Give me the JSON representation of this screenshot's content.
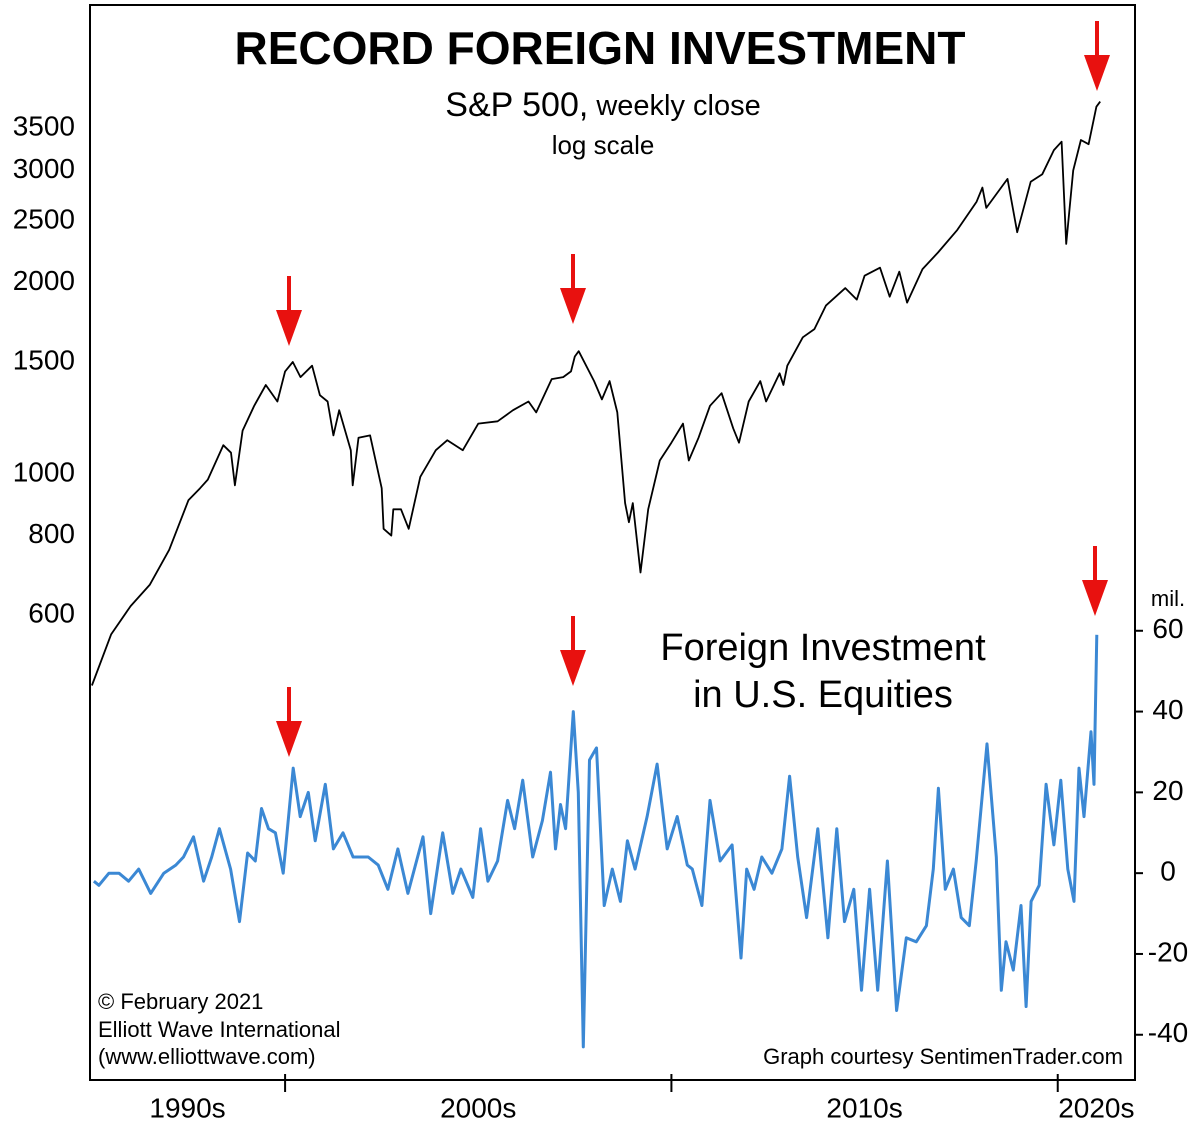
{
  "chart_data": {
    "type": "line",
    "title": "RECORD FOREIGN INVESTMENT",
    "log_y": true,
    "xlim": [
      1994.95,
      2022.0
    ],
    "xticks": [
      2000,
      2010,
      2020
    ],
    "x_labels": [
      "1990s",
      "2000s",
      "2010s",
      "2020s"
    ],
    "ylim": [
      111.5,
      5462
    ],
    "yticks": [
      600,
      800,
      1000,
      1500,
      2000,
      2500,
      3000,
      3500
    ],
    "y2lim": [
      -51.2,
      214.9
    ],
    "y2ticks": [
      -40,
      -20,
      0,
      20,
      40,
      60
    ],
    "y2_unit": "mil.",
    "credits": [
      "© February 2021",
      "Elliott Wave International",
      "(www.elliottwave.com)"
    ],
    "source": "Graph courtesy SentimenTrader.com",
    "series": [
      {
        "name": "S&P 500,",
        "subname": "weekly close",
        "note": "log scale",
        "color": "#000000",
        "x": [
          1995.0,
          1995.5,
          1996.0,
          1996.5,
          1997.0,
          1997.5,
          1997.8,
          1998.0,
          1998.4,
          1998.6,
          1998.7,
          1998.9,
          1999.2,
          1999.5,
          1999.8,
          2000.0,
          2000.2,
          2000.4,
          2000.7,
          2000.9,
          2001.1,
          2001.25,
          2001.4,
          2001.7,
          2001.75,
          2001.9,
          2002.2,
          2002.5,
          2002.55,
          2002.75,
          2002.8,
          2003.0,
          2003.2,
          2003.5,
          2003.9,
          2004.2,
          2004.6,
          2005.0,
          2005.5,
          2005.9,
          2006.3,
          2006.5,
          2006.9,
          2007.2,
          2007.4,
          2007.5,
          2007.6,
          2008.0,
          2008.2,
          2008.4,
          2008.6,
          2008.8,
          2008.9,
          2009.0,
          2009.2,
          2009.4,
          2009.7,
          2010.0,
          2010.3,
          2010.45,
          2010.7,
          2011.0,
          2011.3,
          2011.6,
          2011.75,
          2012.0,
          2012.3,
          2012.45,
          2012.8,
          2012.9,
          2013.0,
          2013.4,
          2013.7,
          2014.0,
          2014.5,
          2014.8,
          2015.0,
          2015.4,
          2015.65,
          2015.9,
          2016.1,
          2016.5,
          2016.9,
          2017.4,
          2017.9,
          2018.05,
          2018.15,
          2018.7,
          2018.95,
          2019.3,
          2019.6,
          2019.9,
          2020.1,
          2020.22,
          2020.4,
          2020.6,
          2020.8,
          2021.0,
          2021.1
        ],
        "values": [
          465,
          560,
          620,
          670,
          760,
          910,
          950,
          980,
          1110,
          1080,
          960,
          1170,
          1280,
          1380,
          1300,
          1450,
          1500,
          1420,
          1480,
          1330,
          1300,
          1150,
          1260,
          1090,
          960,
          1140,
          1150,
          950,
          820,
          800,
          880,
          880,
          820,
          990,
          1090,
          1130,
          1090,
          1200,
          1210,
          1260,
          1300,
          1250,
          1410,
          1420,
          1450,
          1530,
          1560,
          1400,
          1310,
          1400,
          1250,
          900,
          840,
          900,
          700,
          880,
          1050,
          1120,
          1200,
          1050,
          1140,
          1280,
          1340,
          1180,
          1120,
          1300,
          1400,
          1300,
          1440,
          1380,
          1480,
          1640,
          1690,
          1840,
          1960,
          1880,
          2050,
          2110,
          1900,
          2080,
          1860,
          2100,
          2230,
          2420,
          2680,
          2820,
          2620,
          2910,
          2400,
          2880,
          2960,
          3230,
          3330,
          2300,
          3000,
          3350,
          3300,
          3780,
          3850
        ]
      },
      {
        "name": "Foreign Investment",
        "subname": "in U.S. Equities",
        "color": "#3b88d4",
        "axis": "y2",
        "x": [
          1995.05,
          1995.18,
          1995.44,
          1995.7,
          1995.95,
          1996.21,
          1996.52,
          1996.86,
          1997.17,
          1997.37,
          1997.63,
          1997.89,
          1998.1,
          1998.3,
          1998.59,
          1998.82,
          1999.03,
          1999.23,
          1999.39,
          1999.57,
          1999.75,
          1999.95,
          2000.21,
          2000.39,
          2000.6,
          2000.78,
          2001.04,
          2001.25,
          2001.5,
          2001.76,
          2002.15,
          2002.41,
          2002.66,
          2002.92,
          2003.18,
          2003.57,
          2003.77,
          2004.08,
          2004.34,
          2004.55,
          2004.86,
          2005.06,
          2005.25,
          2005.5,
          2005.76,
          2005.94,
          2006.15,
          2006.41,
          2006.66,
          2006.87,
          2007.0,
          2007.13,
          2007.26,
          2007.46,
          2007.59,
          2007.72,
          2007.88,
          2008.06,
          2008.26,
          2008.47,
          2008.68,
          2008.86,
          2009.06,
          2009.37,
          2009.63,
          2009.89,
          2010.15,
          2010.41,
          2010.54,
          2010.79,
          2011.0,
          2011.26,
          2011.57,
          2011.8,
          2011.95,
          2012.14,
          2012.34,
          2012.6,
          2012.86,
          2013.06,
          2013.27,
          2013.5,
          2013.79,
          2014.05,
          2014.28,
          2014.48,
          2014.72,
          2014.92,
          2015.13,
          2015.34,
          2015.59,
          2015.83,
          2016.08,
          2016.34,
          2016.6,
          2016.78,
          2016.91,
          2017.09,
          2017.3,
          2017.5,
          2017.71,
          2017.89,
          2018.17,
          2018.41,
          2018.54,
          2018.66,
          2018.85,
          2019.05,
          2019.18,
          2019.31,
          2019.52,
          2019.7,
          2019.9,
          2020.08,
          2020.26,
          2020.42,
          2020.55,
          2020.68,
          2020.86,
          2020.94,
          2021.01
        ],
        "values": [
          -2,
          -3,
          0,
          0,
          -2,
          1,
          -5,
          0,
          2,
          4,
          9,
          -2,
          4,
          11,
          1,
          -12,
          5,
          3,
          16,
          11,
          10,
          0,
          26,
          14,
          20,
          8,
          22,
          6,
          10,
          4,
          4,
          2,
          -4,
          6,
          -5,
          9,
          -10,
          10,
          -5,
          1,
          -6,
          11,
          -2,
          3,
          18,
          11,
          23,
          4,
          13,
          25,
          6,
          17,
          11,
          40,
          20,
          -43,
          28,
          31,
          -8,
          1,
          -7,
          8,
          1,
          14,
          27,
          6,
          14,
          2,
          1,
          -8,
          18,
          3,
          7,
          -21,
          1,
          -4,
          4,
          0,
          6,
          24,
          4,
          -11,
          11,
          -16,
          11,
          -12,
          -4,
          -29,
          -4,
          -29,
          3,
          -34,
          -16,
          -17,
          -13,
          1,
          21,
          -4,
          1,
          -11,
          -13,
          3,
          32,
          4,
          -29,
          -17,
          -24,
          -8,
          -33,
          -7,
          -3,
          22,
          7,
          23,
          1,
          -7,
          26,
          14,
          35,
          22,
          59
        ]
      }
    ]
  }
}
